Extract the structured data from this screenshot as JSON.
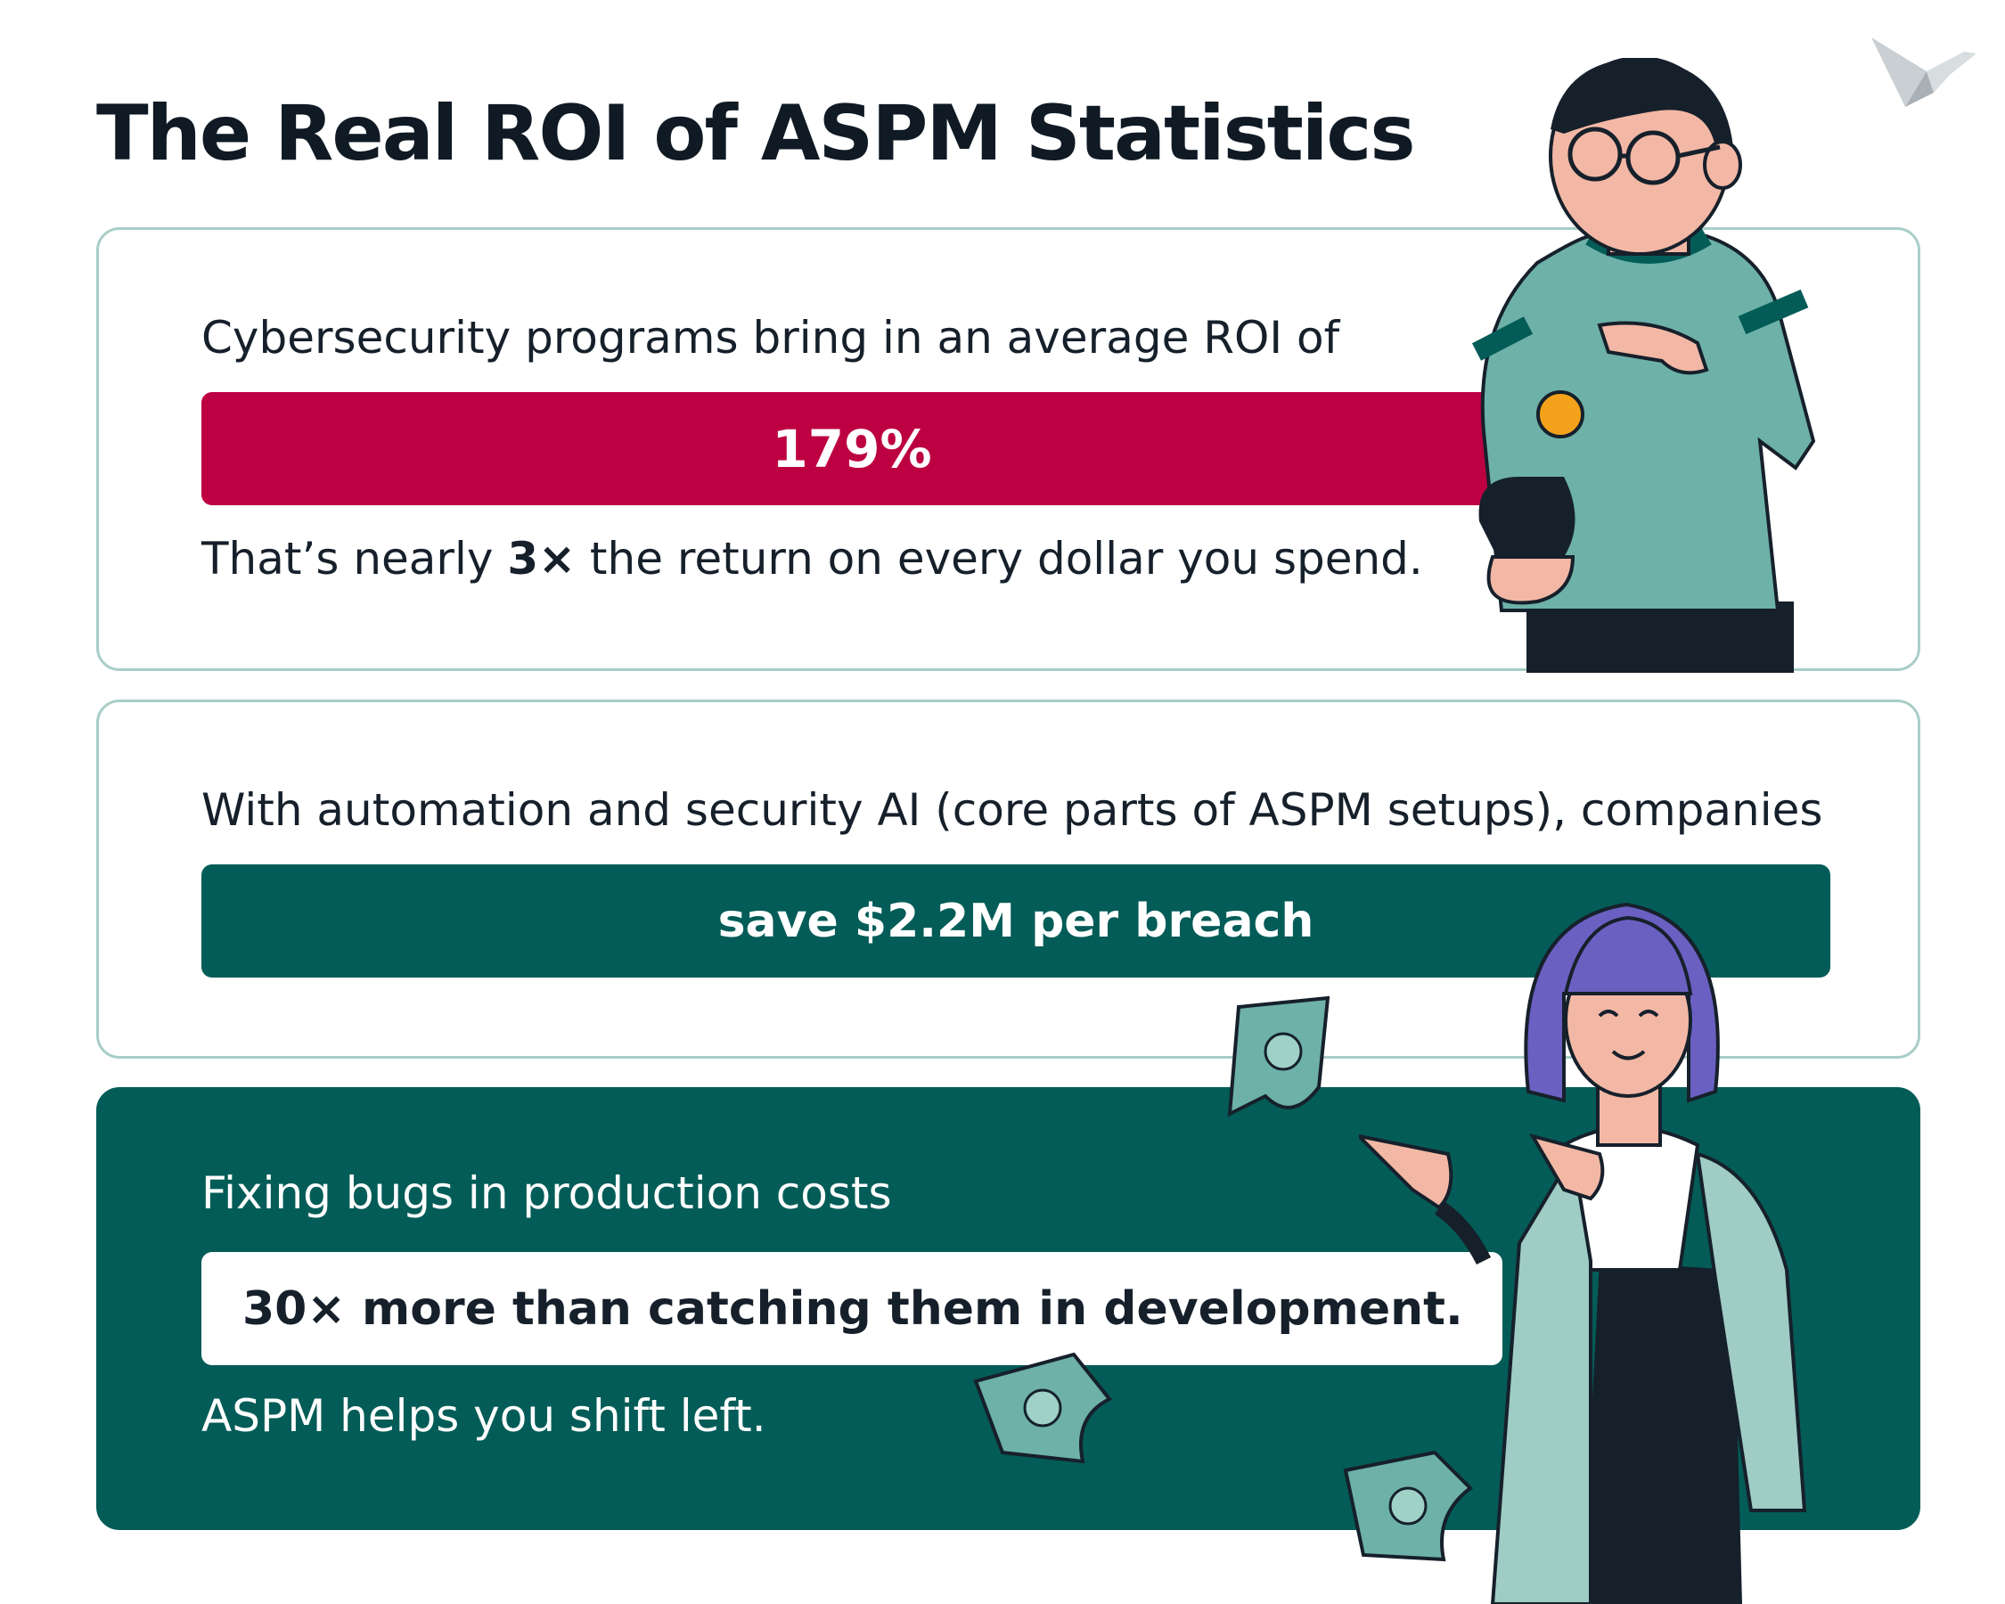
{
  "header": {
    "title": "The Real ROI of ASPM Statistics",
    "logo_icon": "origami-bird-icon"
  },
  "cards": [
    {
      "intro": "Cybersecurity programs bring in an average ROI of",
      "highlight": "179%",
      "outro_prefix": "That’s nearly ",
      "outro_bold": "3×",
      "outro_suffix": " the return on every dollar you spend.",
      "highlight_color": "#bd0042",
      "illustration": "man-with-coin-and-wallet-illustration"
    },
    {
      "intro": "With automation and security AI (core parts of ASPM setups), companies",
      "highlight": "save $2.2M per breach",
      "highlight_color": "#035c57"
    },
    {
      "intro": "Fixing bugs in production costs",
      "highlight": "30× more than catching them in development.",
      "outro": "ASPM helps you shift left.",
      "background_color": "#035c57",
      "illustration": "woman-pointing-illustration",
      "money_icon": "money-bill-icon"
    }
  ]
}
